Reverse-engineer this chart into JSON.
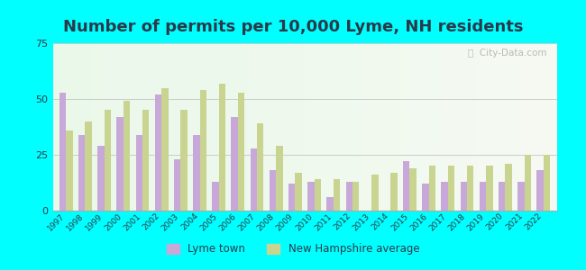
{
  "title": "Number of permits per 10,000 Lyme, NH residents",
  "years": [
    1997,
    1998,
    1999,
    2000,
    2001,
    2002,
    2003,
    2004,
    2005,
    2006,
    2007,
    2008,
    2009,
    2010,
    2011,
    2012,
    2013,
    2014,
    2015,
    2016,
    2017,
    2018,
    2019,
    2020,
    2021,
    2022
  ],
  "lyme_town": [
    53,
    34,
    29,
    42,
    34,
    52,
    23,
    34,
    13,
    42,
    28,
    18,
    12,
    13,
    6,
    13,
    0,
    0,
    22,
    12,
    13,
    13,
    13,
    13,
    13,
    18
  ],
  "nh_average": [
    36,
    40,
    45,
    49,
    45,
    55,
    45,
    54,
    57,
    53,
    39,
    29,
    17,
    14,
    14,
    13,
    16,
    17,
    19,
    20,
    20,
    20,
    20,
    21,
    25,
    25
  ],
  "lyme_color": "#c8a8d8",
  "nh_color": "#c8d490",
  "outer_background": "#00ffff",
  "ylim": [
    0,
    75
  ],
  "yticks": [
    0,
    25,
    50,
    75
  ],
  "title_fontsize": 13,
  "title_color": "#2a3a4a",
  "tick_color": "#2a3a4a",
  "legend_lyme": "Lyme town",
  "legend_nh": "New Hampshire average",
  "watermark": "City-Data.com"
}
